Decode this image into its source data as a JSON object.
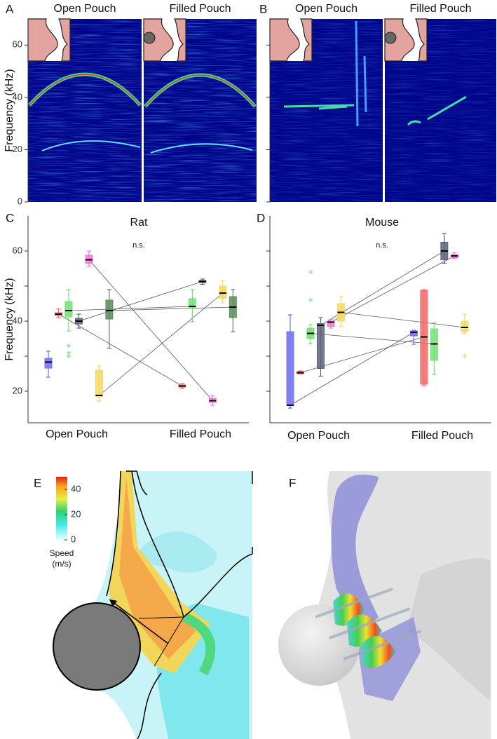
{
  "chart_data": [
    {
      "type": "spectrogram",
      "panel": "A",
      "subplot_titles": [
        "Open Pouch",
        "Filled Pouch"
      ],
      "ylabel": "Frequency (kHz)",
      "ylim": [
        0,
        70
      ],
      "yticks": [
        0,
        20,
        40,
        60
      ]
    },
    {
      "type": "spectrogram",
      "panel": "B",
      "subplot_titles": [
        "Open Pouch",
        "Filled Pouch"
      ],
      "ylim": [
        0,
        70
      ],
      "unlabeled_yticks": [
        0,
        20,
        40,
        60
      ]
    },
    {
      "type": "box",
      "panel": "C",
      "title": "Rat",
      "annotation": "n.s.",
      "ylabel": "Frequency (kHz)",
      "categories": [
        "Open Pouch",
        "Filled Pouch"
      ],
      "ylim": [
        11,
        70
      ],
      "yticks": [
        20,
        40,
        60
      ],
      "unlabeled_yticks": [
        30,
        50
      ],
      "series": [
        {
          "color": "#7070f0",
          "whisker_low": [
            24,
            null
          ],
          "q1": [
            26.6,
            null
          ],
          "median": [
            28.3,
            null
          ],
          "q3": [
            29.4,
            null
          ],
          "whisker_high": [
            31.4,
            null
          ],
          "outliers": [
            [],
            []
          ]
        },
        {
          "color": "#f06a6a",
          "whisker_low": [
            41,
            20.8
          ],
          "q1": [
            41.6,
            21.2
          ],
          "median": [
            42,
            21.5
          ],
          "q3": [
            42.4,
            21.8
          ],
          "whisker_high": [
            43.5,
            22.2
          ],
          "outliers": [
            [],
            []
          ]
        },
        {
          "color": "#74e074",
          "whisker_low": [
            37.2,
            39.8
          ],
          "q1": [
            41.2,
            43.6
          ],
          "median": [
            43,
            44.2
          ],
          "q3": [
            45.6,
            46.4
          ],
          "whisker_high": [
            49,
            49
          ],
          "outliers": [
            [
              33,
              31,
              30
            ],
            []
          ]
        },
        {
          "color": "#5e6278",
          "whisker_low": [
            38,
            50.5
          ],
          "q1": [
            39.2,
            51
          ],
          "median": [
            40,
            51.3
          ],
          "q3": [
            40.8,
            51.6
          ],
          "whisker_high": [
            42,
            52
          ],
          "outliers": [
            [],
            []
          ]
        },
        {
          "color": "#f07ad6",
          "whisker_low": [
            55.6,
            16
          ],
          "q1": [
            56.4,
            16.8
          ],
          "median": [
            57.5,
            17.3
          ],
          "q3": [
            58.8,
            18
          ],
          "whisker_high": [
            60,
            18.8
          ],
          "outliers": [
            [],
            []
          ]
        },
        {
          "color": "#f5d862",
          "whisker_low": [
            17.2,
            45.2
          ],
          "q1": [
            18.4,
            46.5
          ],
          "median": [
            18.8,
            48
          ],
          "q3": [
            26,
            50
          ],
          "whisker_high": [
            27.2,
            51.5
          ],
          "outliers": [
            [],
            []
          ]
        },
        {
          "color": "#5a8c5a",
          "whisker_low": [
            32.2,
            37
          ],
          "q1": [
            40.6,
            41
          ],
          "median": [
            43,
            44
          ],
          "q3": [
            46,
            47
          ],
          "whisker_high": [
            49,
            49
          ],
          "outliers": [
            [],
            []
          ]
        }
      ]
    },
    {
      "type": "box",
      "panel": "D",
      "title": "Mouse",
      "annotation": "n.s.",
      "categories": [
        "Open Pouch",
        "Filled Pouch"
      ],
      "ylim": [
        11,
        70
      ],
      "unlabeled_yticks": [
        20,
        30,
        40,
        50,
        60
      ],
      "series": [
        {
          "color": "#7070f0",
          "whisker_low": [
            15.2,
            33.4
          ],
          "q1": [
            16,
            35.8
          ],
          "median": [
            16,
            36.8
          ],
          "q3": [
            37,
            37.2
          ],
          "whisker_high": [
            41.8,
            37.4
          ],
          "outliers": [
            [],
            []
          ]
        },
        {
          "color": "#f06a6a",
          "whisker_low": [
            24.9,
            21.5
          ],
          "q1": [
            25,
            22
          ],
          "median": [
            25.3,
            35.5
          ],
          "q3": [
            25.6,
            48.8
          ],
          "whisker_high": [
            25.8,
            49
          ],
          "outliers": [
            [],
            []
          ]
        },
        {
          "color": "#74e074",
          "whisker_low": [
            33.6,
            24.8
          ],
          "q1": [
            35,
            28.8
          ],
          "median": [
            36.5,
            33.5
          ],
          "q3": [
            38,
            37.8
          ],
          "whisker_high": [
            39,
            39.5
          ],
          "outliers": [
            [
              46,
              54
            ],
            []
          ]
        },
        {
          "color": "#5e6278",
          "whisker_low": [
            24.3,
            56.5
          ],
          "q1": [
            26.5,
            57.5
          ],
          "median": [
            38.8,
            60
          ],
          "q3": [
            39.3,
            62.5
          ],
          "whisker_high": [
            41,
            65
          ],
          "outliers": [
            [],
            []
          ]
        },
        {
          "color": "#f07ad6",
          "whisker_low": [
            38,
            57.9
          ],
          "q1": [
            38.5,
            58
          ],
          "median": [
            39.7,
            58.6
          ],
          "q3": [
            40,
            59
          ],
          "whisker_high": [
            40.5,
            59.5
          ],
          "outliers": [
            [],
            []
          ]
        },
        {
          "color": "#f5d862",
          "whisker_low": [
            38.5,
            36.5
          ],
          "q1": [
            40,
            37
          ],
          "median": [
            42.5,
            38.2
          ],
          "q3": [
            45,
            40
          ],
          "whisker_high": [
            47,
            42
          ],
          "outliers": [
            [],
            [
              30
            ]
          ]
        }
      ]
    },
    {
      "type": "contour",
      "panel": "E",
      "colorbar_label": [
        "Speed",
        "(m/s)"
      ],
      "clim": [
        0,
        50
      ],
      "cticks": [
        0,
        20,
        40
      ]
    },
    {
      "type": "render3d",
      "panel": "F"
    }
  ]
}
